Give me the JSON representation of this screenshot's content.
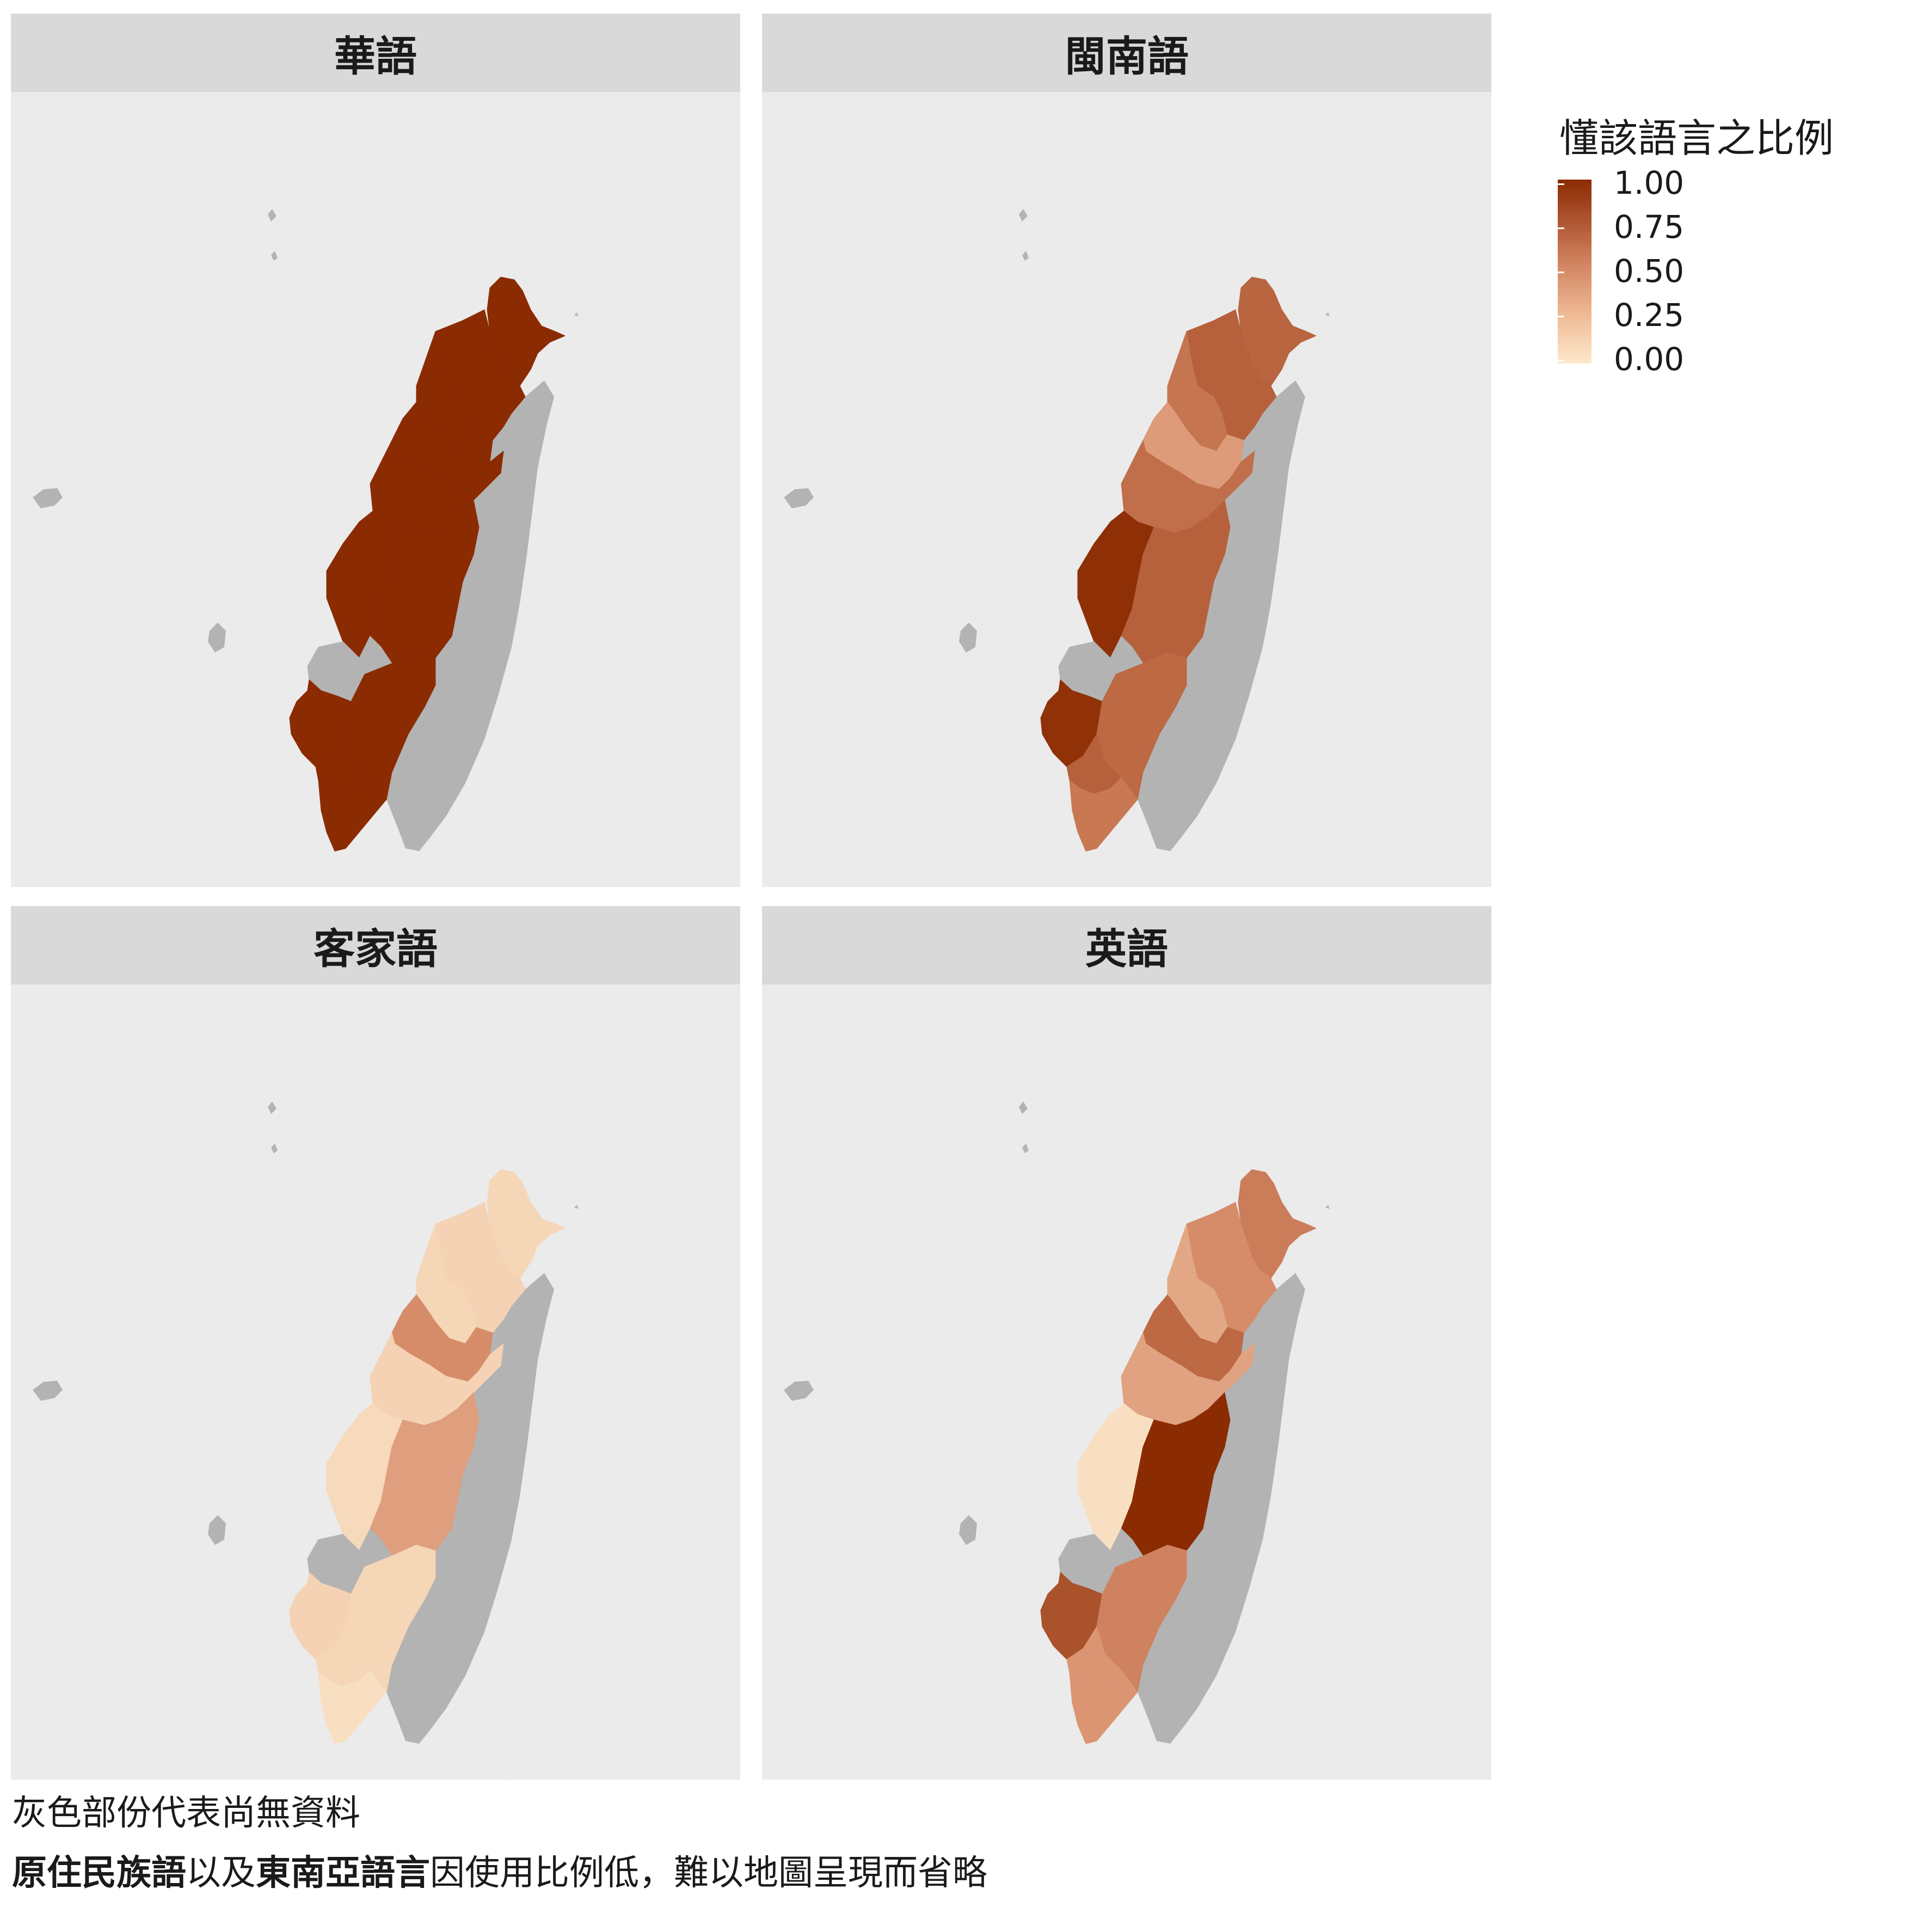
{
  "chart_data": {
    "type": "choropleth",
    "legend": {
      "title": "懂該語言之比例",
      "ticks": [
        "1.00",
        "0.75",
        "0.50",
        "0.25",
        "0.00"
      ],
      "range": [
        0,
        1
      ],
      "low_color": "#fde8cb",
      "high_color": "#8b2b02",
      "missing_color": "#b3b3b3",
      "placement": "right"
    },
    "panels": [
      {
        "title": "華語",
        "regions": {
          "northern_tip": 1.0,
          "north_coast": 1.0,
          "taoyuan": 1.0,
          "hsinchu": 1.0,
          "miaoli_taichung": 1.0,
          "changhua": 1.0,
          "nantou": 1.0,
          "yunlin": null,
          "chiayi": 1.0,
          "tainan": 1.0,
          "kaohsiung": 1.0,
          "pingtung": 1.0
        }
      },
      {
        "title": "閩南語",
        "regions": {
          "northern_tip": 0.7,
          "north_coast": 0.72,
          "taoyuan": 0.62,
          "hsinchu": 0.42,
          "miaoli_taichung": 0.65,
          "changhua": 0.98,
          "nantou": 0.72,
          "yunlin": null,
          "chiayi": 0.97,
          "tainan": 0.68,
          "kaohsiung": 0.72,
          "pingtung": 0.6
        }
      },
      {
        "title": "客家語",
        "regions": {
          "northern_tip": 0.1,
          "north_coast": 0.12,
          "taoyuan": 0.1,
          "hsinchu": 0.5,
          "miaoli_taichung": 0.12,
          "changhua": 0.08,
          "nantou": 0.4,
          "yunlin": null,
          "chiayi": 0.12,
          "tainan": 0.1,
          "kaohsiung": 0.1,
          "pingtung": 0.05
        }
      },
      {
        "title": "英語",
        "regions": {
          "northern_tip": 0.58,
          "north_coast": 0.5,
          "taoyuan": 0.35,
          "hsinchu": 0.68,
          "miaoli_taichung": 0.38,
          "changhua": 0.05,
          "nantou": 1.0,
          "yunlin": null,
          "chiayi": 0.8,
          "tainan": 0.55,
          "kaohsiung": 0.45,
          "pingtung": 0.45
        }
      }
    ]
  },
  "notes": {
    "missing": "灰色部份代表尚無資料",
    "omitted_bold_1": "原住民族語",
    "omitted_text_1": "以及",
    "omitted_bold_2": "東南亞語言",
    "omitted_text_2": "因使用比例低，難以地圖呈現而省略"
  }
}
